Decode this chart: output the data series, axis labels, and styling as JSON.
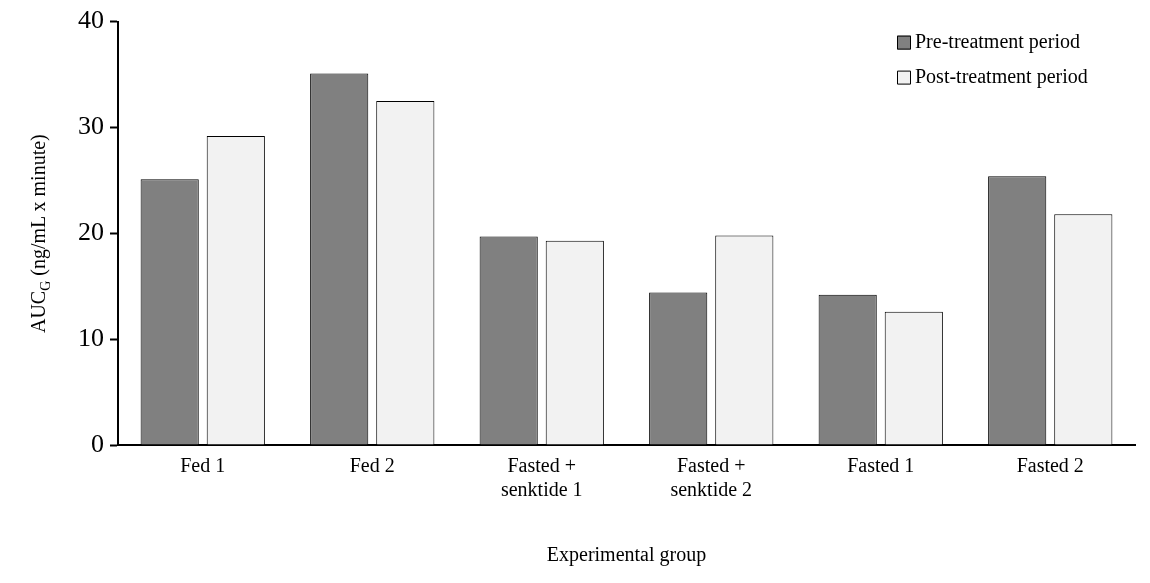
{
  "chart_data": {
    "type": "bar",
    "xlabel": "Experimental group",
    "ylabel": "AUC$_{G}$ (ng/mL x minute)",
    "categories": [
      "Fed 1",
      "Fed 2",
      "Fasted + senktide 1",
      "Fasted + senktide 2",
      "Fasted 1",
      "Fasted 2"
    ],
    "series": [
      {
        "name": "Pre-treatment period",
        "color": "#808080",
        "values": [
          25.1,
          35.1,
          19.7,
          14.4,
          14.2,
          25.4
        ]
      },
      {
        "name": "Post-treatment period",
        "color": "#f2f2f2",
        "values": [
          29.2,
          32.5,
          19.3,
          19.8,
          12.6,
          21.8
        ]
      }
    ],
    "ylim": [
      0,
      40
    ],
    "yticks": [
      0,
      10,
      20,
      30,
      40
    ],
    "grid": false,
    "legend": "top right"
  }
}
